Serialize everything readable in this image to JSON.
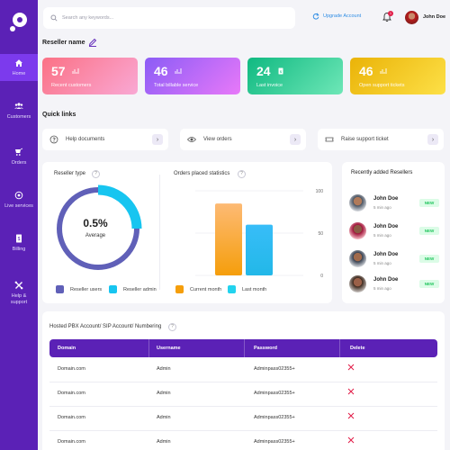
{
  "search": {
    "placeholder": "Search any keywords..."
  },
  "header": {
    "upgrade_label": "Upgrade Account",
    "notification_count": "1",
    "user_name": "John Doe"
  },
  "sidebar": {
    "items": [
      {
        "label": "Home",
        "icon": "home-icon"
      },
      {
        "label": "Customers",
        "icon": "users-icon"
      },
      {
        "label": "Orders",
        "icon": "orders-icon"
      },
      {
        "label": "Live services",
        "icon": "live-services-icon"
      },
      {
        "label": "Billing",
        "icon": "billing-icon"
      },
      {
        "label": "Help & support",
        "icon": "tools-icon"
      }
    ]
  },
  "page": {
    "title": "Reseller name"
  },
  "stats": [
    {
      "value": "57",
      "label": "Recent customers",
      "color": "#f472b6"
    },
    {
      "value": "46",
      "label": "Total billable service",
      "color": "#a855f7"
    },
    {
      "value": "24",
      "label": "Last invoice",
      "color": "#34d399"
    },
    {
      "value": "46",
      "label": "Open support tickets",
      "color": "#eab308"
    }
  ],
  "quick_links": {
    "title": "Quick links",
    "items": [
      {
        "label": "Help documents"
      },
      {
        "label": "View orders"
      },
      {
        "label": "Raise support ticket"
      }
    ]
  },
  "reseller_type": {
    "title": "Reseller type",
    "percent": "0.5%",
    "caption": "Average",
    "legend": [
      "Reseller users",
      "Reseller admin"
    ],
    "colors": {
      "users": "#6060b8",
      "admin": "#17c5f0"
    }
  },
  "orders_stats": {
    "title": "Orders placed statistics",
    "legend": [
      "Current month",
      "Last month"
    ]
  },
  "chart_data": {
    "type": "bar",
    "title": "Orders placed statistics",
    "categories": [
      "Current month",
      "Last month"
    ],
    "values": [
      85,
      60
    ],
    "ylim": [
      0,
      100
    ],
    "yticks": [
      "100",
      "50",
      "0"
    ],
    "colors": [
      "#f59e0b",
      "#22b8e8"
    ],
    "grid": true
  },
  "recent": {
    "title": "Recently added Resellers",
    "items": [
      {
        "name": "John Doe",
        "time": "5 min ago",
        "badge": "NEW"
      },
      {
        "name": "John Doe",
        "time": "5 min ago",
        "badge": "NEW"
      },
      {
        "name": "John Doe",
        "time": "5 min ago",
        "badge": "NEW"
      },
      {
        "name": "John Doe",
        "time": "5 min ago",
        "badge": "NEW"
      }
    ]
  },
  "table": {
    "title": "Hosted PBX Account/ SIP Account/ Numbering",
    "columns": [
      "Domain",
      "Username",
      "Password",
      "Delete"
    ],
    "rows": [
      [
        "Domain.com",
        "Admin",
        "Adminpass02355+"
      ],
      [
        "Domain.com",
        "Admin",
        "Adminpass02355+"
      ],
      [
        "Domain.com",
        "Admin",
        "Adminpass02355+"
      ],
      [
        "Domain.com",
        "Admin",
        "Adminpass02355+"
      ]
    ]
  }
}
